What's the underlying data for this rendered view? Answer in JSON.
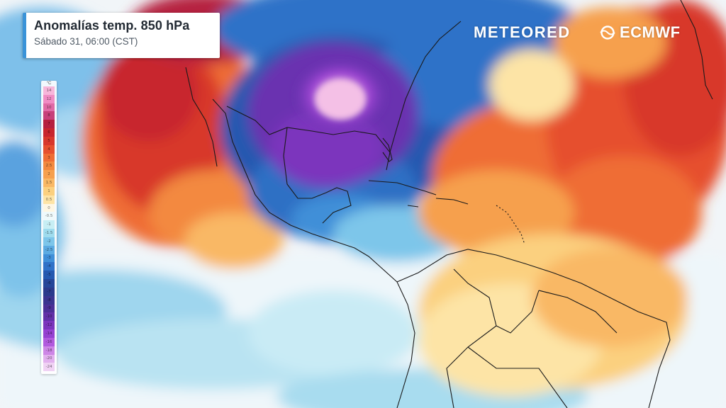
{
  "title_card": {
    "title": "Anomalías temp. 850 hPa",
    "subtitle": "Sábado 31, 06:00 (CST)"
  },
  "brands": {
    "meteored": "METEORED",
    "ecmwf": "ECMWF"
  },
  "legend": {
    "unit": "°C",
    "entries": [
      {
        "label": "14",
        "color": "#f7b6da"
      },
      {
        "label": "12",
        "color": "#f08cc4"
      },
      {
        "label": "10",
        "color": "#e06aa6"
      },
      {
        "label": "8",
        "color": "#c7407a"
      },
      {
        "label": "7",
        "color": "#b6203f"
      },
      {
        "label": "6",
        "color": "#c8262e"
      },
      {
        "label": "5",
        "color": "#d8382c"
      },
      {
        "label": "4",
        "color": "#e6502e"
      },
      {
        "label": "3",
        "color": "#ef6d34"
      },
      {
        "label": "2.5",
        "color": "#f3893f"
      },
      {
        "label": "2",
        "color": "#f6a04e"
      },
      {
        "label": "1.5",
        "color": "#f9b865"
      },
      {
        "label": "1",
        "color": "#fbd07f"
      },
      {
        "label": "0.5",
        "color": "#fde4a6"
      },
      {
        "label": "0",
        "color": "#fdf6e3"
      },
      {
        "label": "-0.5",
        "color": "#eef9fb"
      },
      {
        "label": "-1",
        "color": "#c7eef4"
      },
      {
        "label": "-1.5",
        "color": "#9fdcee"
      },
      {
        "label": "-2",
        "color": "#7dc6ea"
      },
      {
        "label": "-2.5",
        "color": "#5cabe2"
      },
      {
        "label": "-3",
        "color": "#3f8fd8"
      },
      {
        "label": "-4",
        "color": "#2f72c8"
      },
      {
        "label": "-5",
        "color": "#2559b0"
      },
      {
        "label": "-6",
        "color": "#254699"
      },
      {
        "label": "-7",
        "color": "#2b3a8c"
      },
      {
        "label": "-8",
        "color": "#3b3490"
      },
      {
        "label": "-9",
        "color": "#4c2f97"
      },
      {
        "label": "-10",
        "color": "#6230a8"
      },
      {
        "label": "-12",
        "color": "#7b35bd"
      },
      {
        "label": "-14",
        "color": "#9540d1"
      },
      {
        "label": "-16",
        "color": "#b15ade"
      },
      {
        "label": "-18",
        "color": "#cd86e6"
      },
      {
        "label": "-20",
        "color": "#e2b0ee"
      },
      {
        "label": "-24",
        "color": "#f0d2f4"
      }
    ]
  },
  "colors": {
    "warm_core": "#c7262e",
    "warm_mid": "#ef6d34",
    "warm_light": "#f9b865",
    "neutral": "#fdf6e3",
    "cool_light": "#9fdcee",
    "cool": "#3f8fd8",
    "cold": "#254699",
    "very_cold": "#7b35bd",
    "extreme_cold": "#f0b4e6",
    "accent": "#3a93d8"
  }
}
